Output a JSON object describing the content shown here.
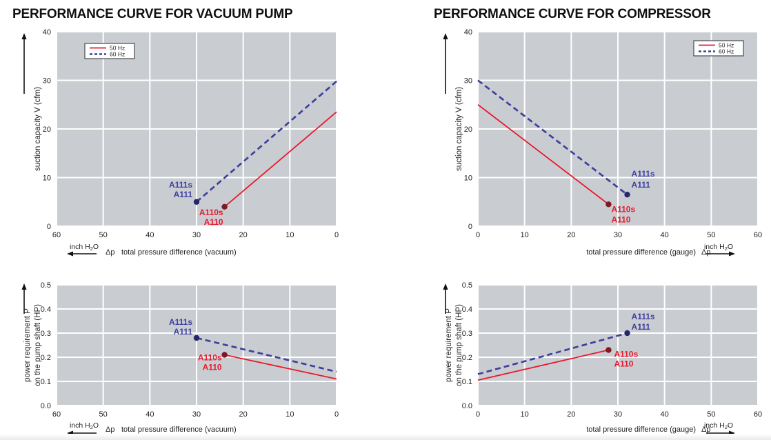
{
  "colors": {
    "red": "#e8192c",
    "blue": "#3f3f9c",
    "marker_red": "#7e1a24",
    "marker_blue": "#26266b",
    "plot_bg": "#c9cdd2",
    "grid": "#ffffff",
    "text": "#1f1f1f",
    "title": "#101010",
    "legend_border": "#4a4a4a"
  },
  "sections": [
    {
      "title": "PERFORMANCE CURVE FOR VACUUM PUMP"
    },
    {
      "title": "PERFORMANCE CURVE FOR COMPRESSOR"
    }
  ],
  "legend": {
    "labels": [
      "50 Hz",
      "60 Hz"
    ]
  },
  "chart_data": [
    {
      "id": "vacuum-suction",
      "type": "line",
      "size": "tall",
      "ylabel_lines": [
        "suction capacity V (cfm)"
      ],
      "ylim": [
        0,
        40
      ],
      "yticks": [
        "0",
        "10",
        "20",
        "30",
        "40"
      ],
      "xlim": [
        60,
        0
      ],
      "xticks": [
        "60",
        "50",
        "40",
        "30",
        "20",
        "10",
        "0"
      ],
      "x_axis": {
        "dp": "Δp",
        "label": "total pressure difference (vacuum)",
        "unit_pre": "inch H",
        "unit_sub": "2",
        "unit_post": "O",
        "arrow": "left",
        "unit_side": "left"
      },
      "legend_pos": "top-left",
      "series": [
        {
          "name": "50 Hz",
          "color": "red",
          "dash": false,
          "points": [
            [
              24,
              4
            ],
            [
              0,
              23.5
            ]
          ],
          "marker": {
            "x": 24,
            "y": 4,
            "color": "marker_red"
          },
          "annotation": {
            "lines": [
              "A110s",
              "A110"
            ],
            "anchor": "end",
            "dx": -2,
            "dy": [
              12,
              26
            ],
            "color": "red"
          }
        },
        {
          "name": "60 Hz",
          "color": "blue",
          "dash": true,
          "points": [
            [
              30,
              5
            ],
            [
              0,
              29.8
            ]
          ],
          "marker": {
            "x": 30,
            "y": 5,
            "color": "marker_blue"
          },
          "annotation": {
            "lines": [
              "A111s",
              "A111"
            ],
            "anchor": "end",
            "dx": -6,
            "dy": [
              -21,
              -7
            ],
            "color": "blue"
          }
        }
      ]
    },
    {
      "id": "vacuum-power",
      "type": "line",
      "size": "short",
      "ylabel_lines": [
        "power requirement P",
        "on the pump shaft (HP)"
      ],
      "ylim": [
        0,
        0.5
      ],
      "yticks": [
        "0.0",
        "0.1",
        "0.2",
        "0.3",
        "0.4",
        "0.5"
      ],
      "xlim": [
        60,
        0
      ],
      "xticks": [
        "60",
        "50",
        "40",
        "30",
        "20",
        "10",
        "0"
      ],
      "x_axis": {
        "dp": "Δp",
        "label": "total pressure difference (vacuum)",
        "unit_pre": "inch H",
        "unit_sub": "2",
        "unit_post": "O",
        "arrow": "left",
        "unit_side": "left"
      },
      "legend_pos": null,
      "series": [
        {
          "name": "50 Hz",
          "color": "red",
          "dash": false,
          "points": [
            [
              24,
              0.21
            ],
            [
              0,
              0.11
            ]
          ],
          "marker": {
            "x": 24,
            "y": 0.21,
            "color": "marker_red"
          },
          "annotation": {
            "lines": [
              "A110s",
              "A110"
            ],
            "anchor": "end",
            "dx": -4,
            "dy": [
              8,
              22
            ],
            "color": "red"
          }
        },
        {
          "name": "60 Hz",
          "color": "blue",
          "dash": true,
          "points": [
            [
              30,
              0.28
            ],
            [
              0,
              0.14
            ]
          ],
          "marker": {
            "x": 30,
            "y": 0.28,
            "color": "marker_blue"
          },
          "annotation": {
            "lines": [
              "A111s",
              "A111"
            ],
            "anchor": "end",
            "dx": -6,
            "dy": [
              -19,
              -5
            ],
            "color": "blue"
          }
        }
      ]
    },
    {
      "id": "compressor-suction",
      "type": "line",
      "size": "tall",
      "ylabel_lines": [
        "suction capacity V (cfm)"
      ],
      "ylim": [
        0,
        40
      ],
      "yticks": [
        "0",
        "10",
        "20",
        "30",
        "40"
      ],
      "xlim": [
        0,
        60
      ],
      "xticks": [
        "0",
        "10",
        "20",
        "30",
        "40",
        "50",
        "60"
      ],
      "x_axis": {
        "dp": "Δp",
        "label": "total pressure difference (gauge)",
        "unit_pre": "inch H",
        "unit_sub": "2",
        "unit_post": "O",
        "arrow": "right",
        "unit_side": "right"
      },
      "legend_pos": "top-right",
      "series": [
        {
          "name": "50 Hz",
          "color": "red",
          "dash": false,
          "points": [
            [
              0,
              25
            ],
            [
              28,
              4.5
            ]
          ],
          "marker": {
            "x": 28,
            "y": 4.5,
            "color": "marker_red"
          },
          "annotation": {
            "lines": [
              "A110s",
              "A110"
            ],
            "anchor": "start",
            "dx": 4,
            "dy": [
              11,
              26
            ],
            "color": "red"
          }
        },
        {
          "name": "60 Hz",
          "color": "blue",
          "dash": true,
          "points": [
            [
              0,
              30
            ],
            [
              32,
              6.5
            ]
          ],
          "marker": {
            "x": 32,
            "y": 6.5,
            "color": "marker_blue"
          },
          "annotation": {
            "lines": [
              "A111s",
              "A111"
            ],
            "anchor": "start",
            "dx": 6,
            "dy": [
              -26,
              -10
            ],
            "color": "blue"
          }
        }
      ]
    },
    {
      "id": "compressor-power",
      "type": "line",
      "size": "short",
      "ylabel_lines": [
        "power requirement P",
        "on the pump shaft (HP)"
      ],
      "ylim": [
        0,
        0.5
      ],
      "yticks": [
        "0.0",
        "0.1",
        "0.2",
        "0.3",
        "0.4",
        "0.5"
      ],
      "xlim": [
        0,
        60
      ],
      "xticks": [
        "0",
        "10",
        "20",
        "30",
        "40",
        "50",
        "60"
      ],
      "x_axis": {
        "dp": "Δp",
        "label": "total pressure difference (gauge)",
        "unit_pre": "inch H",
        "unit_sub": "2",
        "unit_post": "O",
        "arrow": "right",
        "unit_side": "right"
      },
      "legend_pos": null,
      "series": [
        {
          "name": "50 Hz",
          "color": "red",
          "dash": false,
          "points": [
            [
              0,
              0.105
            ],
            [
              28,
              0.23
            ]
          ],
          "marker": {
            "x": 28,
            "y": 0.23,
            "color": "marker_red"
          },
          "annotation": {
            "lines": [
              "A110s",
              "A110"
            ],
            "anchor": "start",
            "dx": 8,
            "dy": [
              10,
              24
            ],
            "color": "red"
          }
        },
        {
          "name": "60 Hz",
          "color": "blue",
          "dash": true,
          "points": [
            [
              0,
              0.13
            ],
            [
              32,
              0.3
            ]
          ],
          "marker": {
            "x": 32,
            "y": 0.3,
            "color": "marker_blue"
          },
          "annotation": {
            "lines": [
              "A111s",
              "A111"
            ],
            "anchor": "start",
            "dx": 6,
            "dy": [
              -20,
              -5
            ],
            "color": "blue"
          }
        }
      ]
    }
  ]
}
